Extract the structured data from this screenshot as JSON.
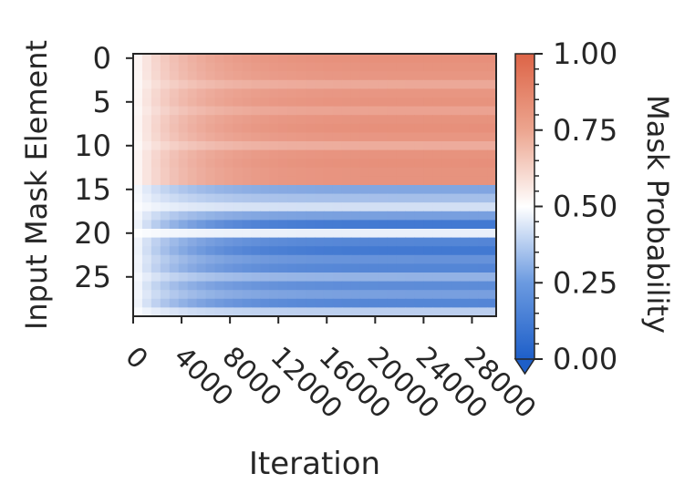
{
  "chart_data": {
    "type": "heatmap",
    "xlabel": "Iteration",
    "ylabel": "Input Mask Element",
    "x_ticks": [
      0,
      4000,
      8000,
      12000,
      16000,
      20000,
      24000,
      28000
    ],
    "y_ticks": [
      0,
      5,
      10,
      15,
      20,
      25
    ],
    "xlim": [
      0,
      30000
    ],
    "ylim": [
      0,
      30
    ],
    "colorbar": {
      "label": "Mask Probability",
      "ticks": [
        "0.00",
        "0.25",
        "0.50",
        "0.75",
        "1.00"
      ],
      "range": [
        0,
        1
      ],
      "low_color": "#1e5fc9",
      "mid_color": "#ffffff",
      "high_color": "#dd6447"
    },
    "rows": 30,
    "x_bins": 40,
    "row_final_values": [
      0.86,
      0.85,
      0.84,
      0.78,
      0.84,
      0.85,
      0.8,
      0.85,
      0.86,
      0.84,
      0.77,
      0.85,
      0.86,
      0.85,
      0.85,
      0.22,
      0.3,
      0.4,
      0.2,
      0.08,
      0.45,
      0.12,
      0.08,
      0.16,
      0.12,
      0.26,
      0.14,
      0.2,
      0.12,
      0.35
    ],
    "row_rate": 4000,
    "initial_value": 0.5
  }
}
